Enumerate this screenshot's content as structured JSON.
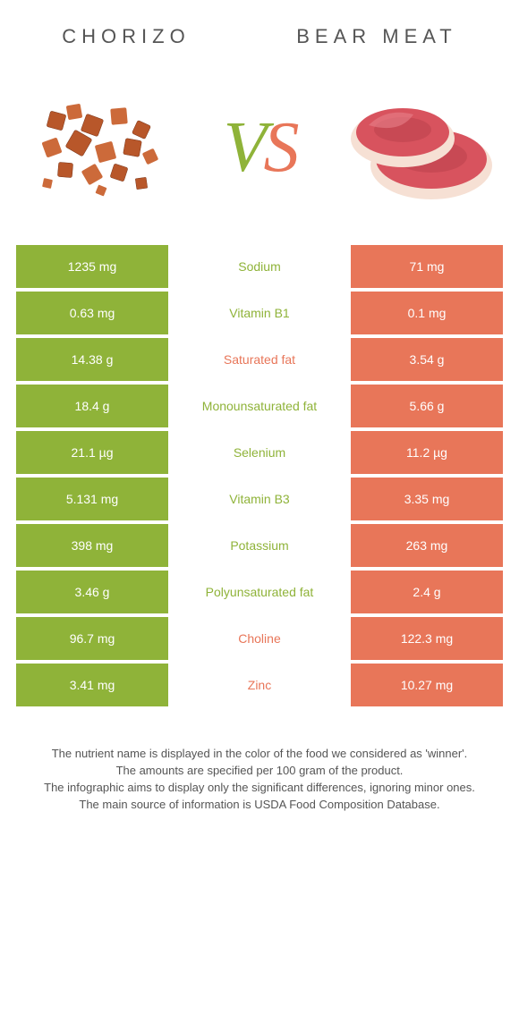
{
  "titles": {
    "left": "Chorizo",
    "right": "Bear meat"
  },
  "vs": {
    "v": "V",
    "s": "S"
  },
  "colors": {
    "left_bg": "#8fb339",
    "right_bg": "#e87659",
    "left_label": "#8fb339",
    "right_label": "#e87659"
  },
  "rows": [
    {
      "left": "1235 mg",
      "label": "Sodium",
      "right": "71 mg",
      "winner": "left"
    },
    {
      "left": "0.63 mg",
      "label": "Vitamin B1",
      "right": "0.1 mg",
      "winner": "left"
    },
    {
      "left": "14.38 g",
      "label": "Saturated fat",
      "right": "3.54 g",
      "winner": "right"
    },
    {
      "left": "18.4 g",
      "label": "Monounsaturated fat",
      "right": "5.66 g",
      "winner": "left"
    },
    {
      "left": "21.1 µg",
      "label": "Selenium",
      "right": "11.2 µg",
      "winner": "left"
    },
    {
      "left": "5.131 mg",
      "label": "Vitamin B3",
      "right": "3.35 mg",
      "winner": "left"
    },
    {
      "left": "398 mg",
      "label": "Potassium",
      "right": "263 mg",
      "winner": "left"
    },
    {
      "left": "3.46 g",
      "label": "Polyunsaturated fat",
      "right": "2.4 g",
      "winner": "left"
    },
    {
      "left": "96.7 mg",
      "label": "Choline",
      "right": "122.3 mg",
      "winner": "right"
    },
    {
      "left": "3.41 mg",
      "label": "Zinc",
      "right": "10.27 mg",
      "winner": "right"
    }
  ],
  "footer": {
    "l1": "The nutrient name is displayed in the color of the food we considered as 'winner'.",
    "l2": "The amounts are specified per 100 gram of the product.",
    "l3": "The infographic aims to display only the significant differences, ignoring minor ones.",
    "l4": "The main source of information is USDA Food Composition Database."
  }
}
